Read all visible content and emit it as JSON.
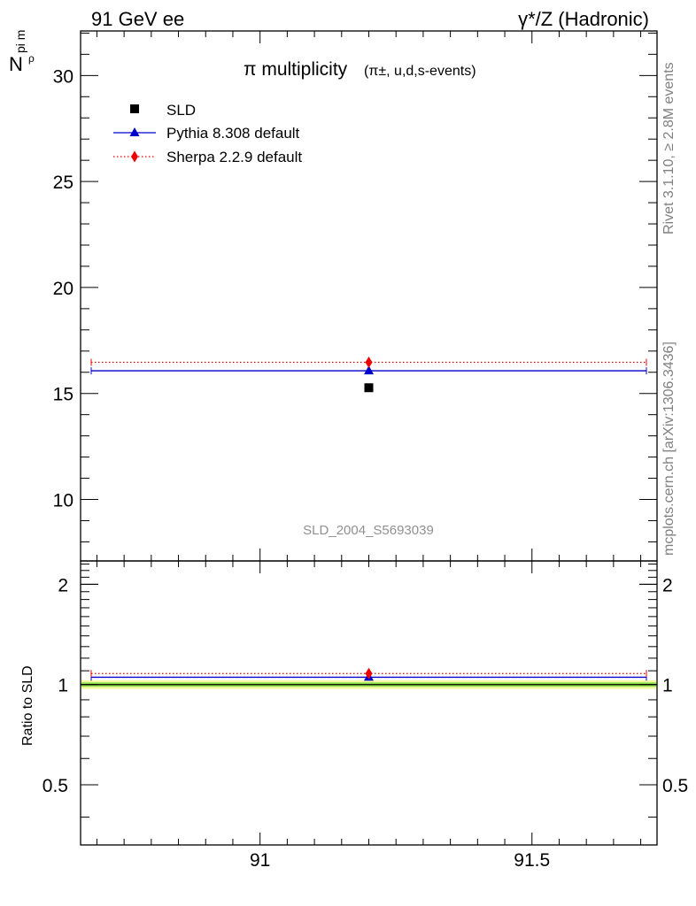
{
  "header": {
    "left": "91 GeV ee",
    "right": "γ*/Z (Hadronic)"
  },
  "side_labels": {
    "rivet": "Rivet 3.1.10, ≥ 2.8M events",
    "mcplots": "mcplots.cern.ch [arXiv:1306.3436]"
  },
  "chart_data": {
    "type": "scatter",
    "title": "π multiplicity",
    "title_suffix": "(π±, u,d,s-events)",
    "analysis_id": "SLD_2004_S5693039",
    "ylabel_main": "N",
    "ylabel_main_sup": "ρ",
    "ylabel_main_sub": "pi m",
    "ylabel_ratio": "Ratio to SLD",
    "x_range": [
      90.67,
      91.73
    ],
    "x_ticks": [
      "91",
      "91.5"
    ],
    "x_tick_values": [
      91,
      91.5
    ],
    "main_ylim": [
      7.1,
      32.1
    ],
    "main_yticks": [
      "10",
      "15",
      "20",
      "25",
      "30"
    ],
    "main_ytick_values": [
      10,
      15,
      20,
      25,
      30
    ],
    "ratio_ylim": [
      0.33,
      2.35
    ],
    "ratio_yticks": [
      "0.5",
      "1",
      "2"
    ],
    "ratio_ytick_values": [
      0.5,
      1,
      2
    ],
    "legend_position": "top-left",
    "series": [
      {
        "name": "SLD",
        "marker": "square",
        "color": "#000000",
        "x": 91.2,
        "y": 15.27,
        "ratio": 1.0,
        "band": 0.03
      },
      {
        "name": "Pythia 8.308 default",
        "marker": "triangle",
        "line": "solid",
        "color": "#0000cc",
        "x": 91.2,
        "y": 16.07,
        "ratio": 1.052
      },
      {
        "name": "Sherpa 2.2.9 default",
        "marker": "diamond",
        "line": "dotted",
        "color": "#ee0000",
        "x": 91.2,
        "y": 16.47,
        "ratio": 1.079
      }
    ]
  }
}
